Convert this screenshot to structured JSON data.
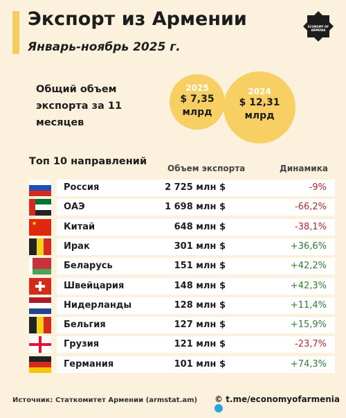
{
  "header": {
    "title": "Экспорт из Армении",
    "subtitle": "Январь-ноябрь 2025 г.",
    "logo": "ECONOMY OF ARMENIA"
  },
  "summary": {
    "label": "Общий объем экспорта за 11 месяцев",
    "cards": [
      {
        "year": "2025",
        "value": "$ 7,35 млрд"
      },
      {
        "year": "2024",
        "value": "$ 12,31 млрд"
      }
    ]
  },
  "table": {
    "title": "Топ 10 направлений",
    "columns": [
      "Объем экспорта",
      "Динамика"
    ],
    "rows": [
      [
        "Россия",
        "2 725 млн $",
        "-9%"
      ],
      [
        "ОАЭ",
        "1 698 млн $",
        "-66,2%"
      ],
      [
        "Китай",
        "648 млн $",
        "-38,1%"
      ],
      [
        "Ирак",
        "301 млн $",
        "+36,6%"
      ],
      [
        "Беларусь",
        "151 млн $",
        "+42,2%"
      ],
      [
        "Швейцария",
        "148 млн $",
        "+42,3%"
      ],
      [
        "Нидерланды",
        "128 млн $",
        "+11,4%"
      ],
      [
        "Бельгия",
        "127 млн $",
        "+15,9%"
      ],
      [
        "Грузия",
        "121 млн $",
        "-23,7%"
      ],
      [
        "Германия",
        "101 млн $",
        "+74,3%"
      ]
    ]
  },
  "footer": {
    "source": "Источник: Статкомитет Армении (armstat.am)",
    "channel": "t.me/economyofarmenia"
  }
}
